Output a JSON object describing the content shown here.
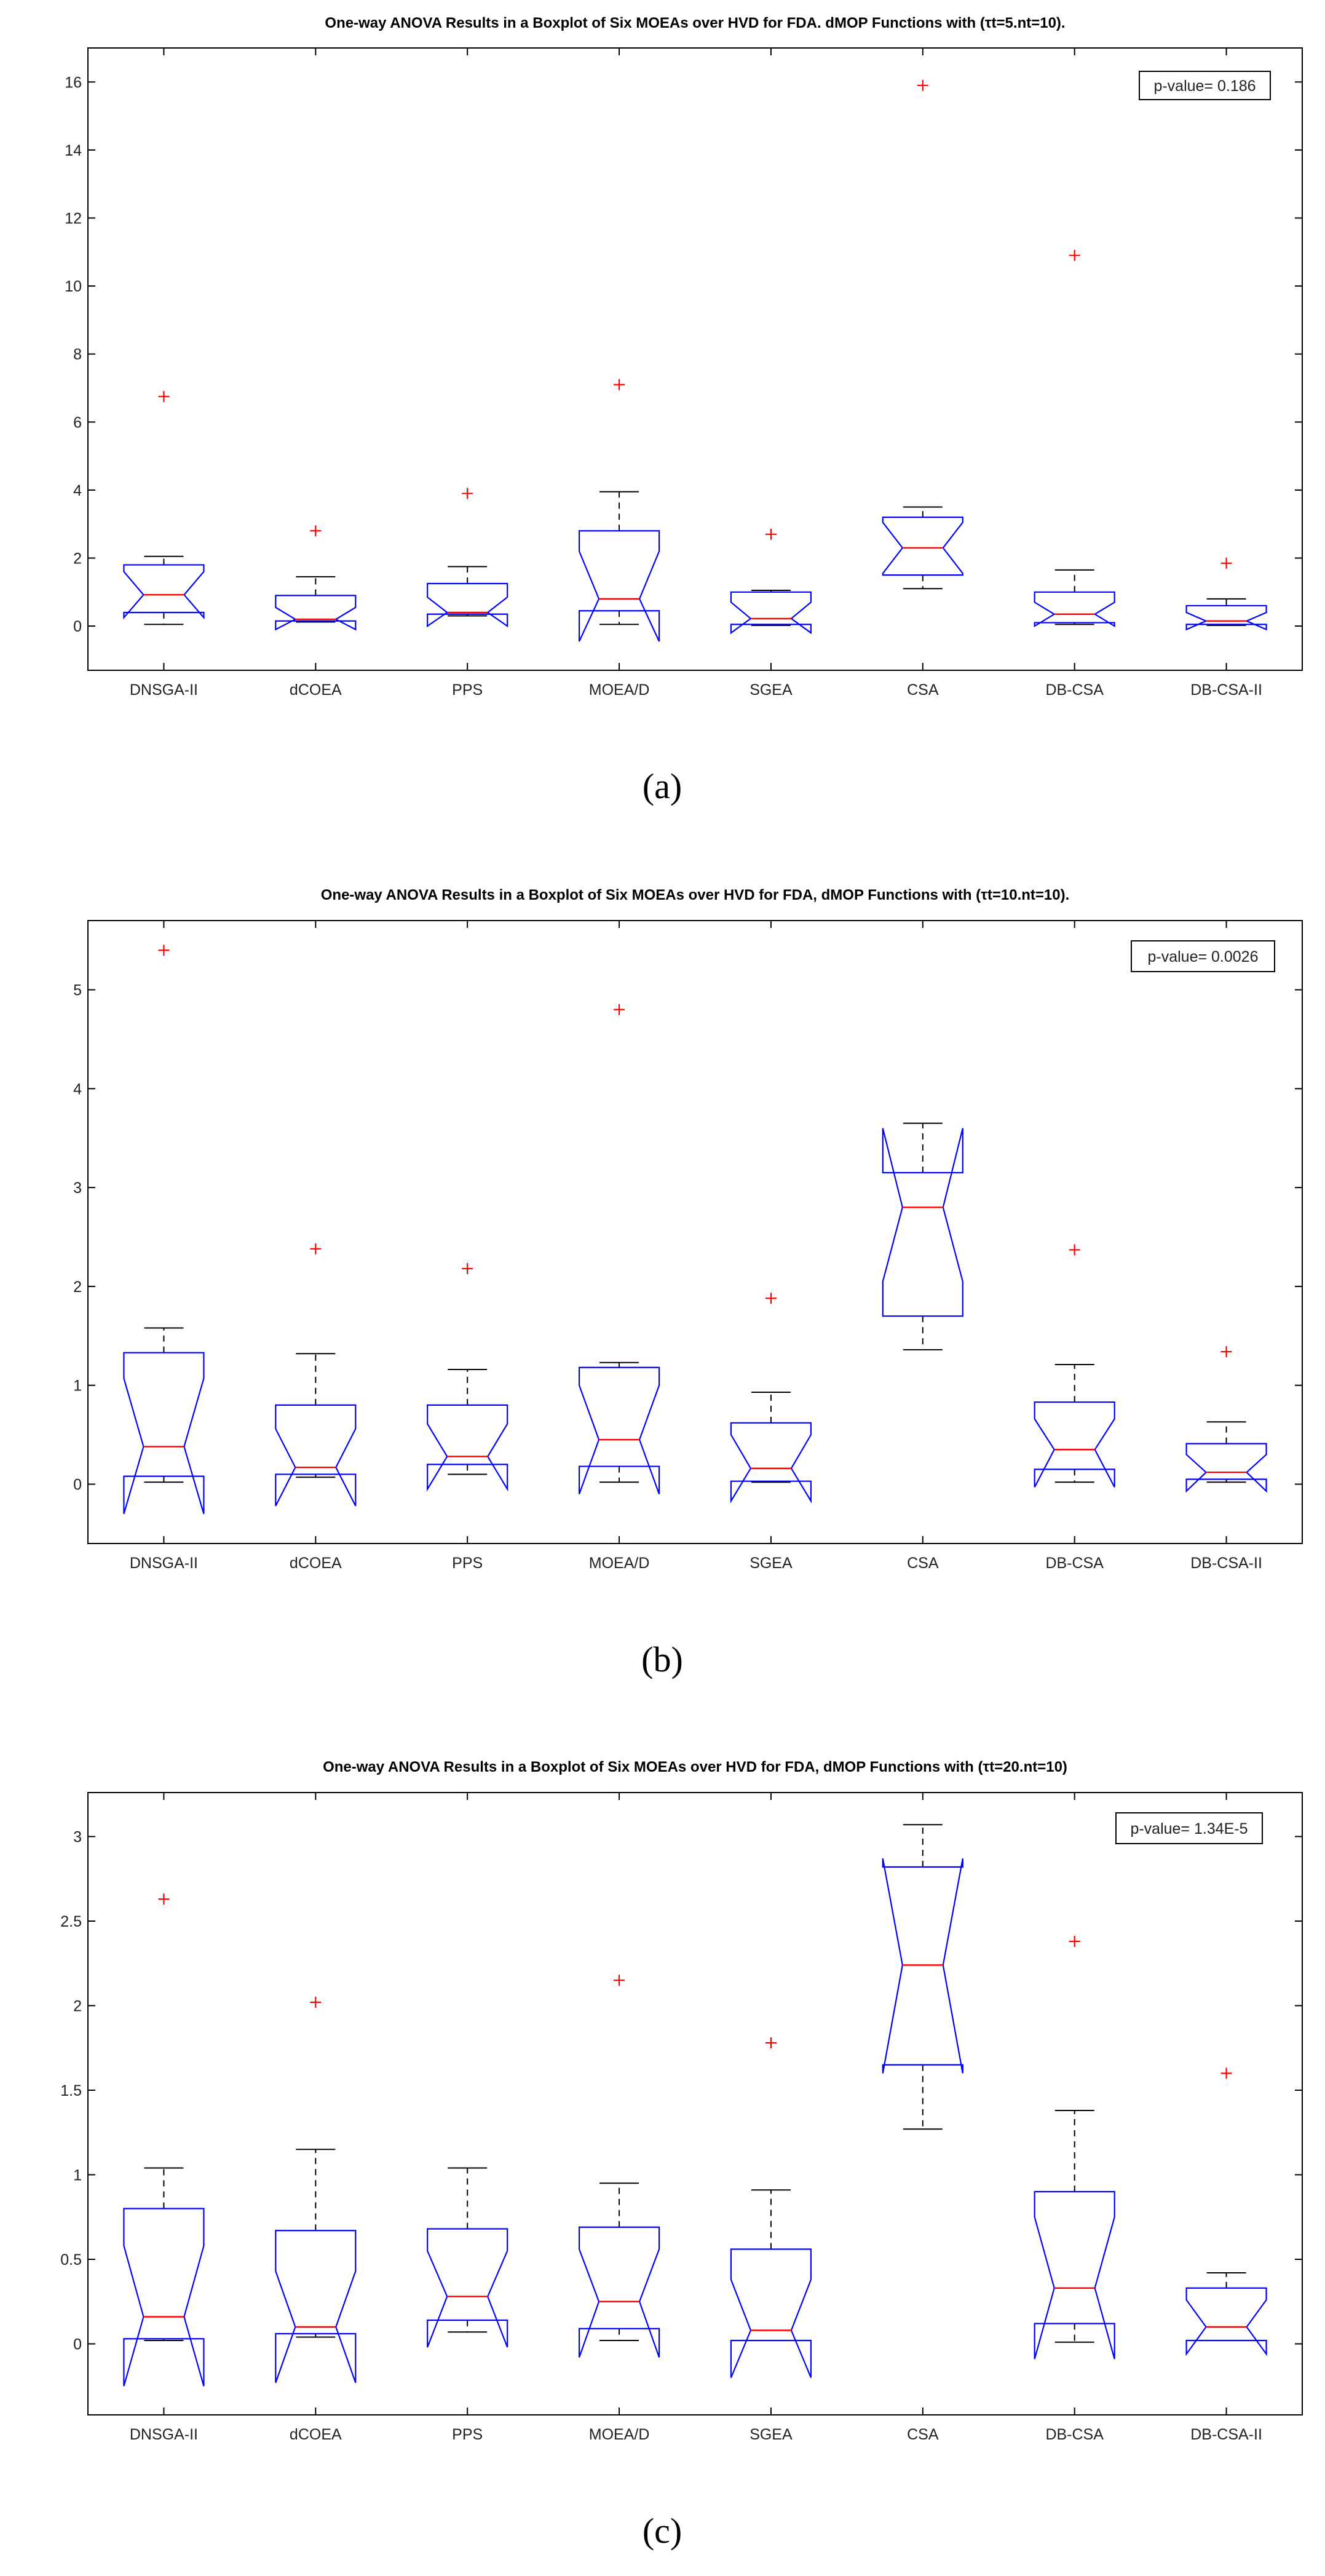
{
  "figure": {
    "colors": {
      "box": "#0000ff",
      "median": "#ff0000",
      "outlier": "#ff0000",
      "whisker": "#000000",
      "axes": "#000000",
      "background": "#ffffff"
    },
    "panels": [
      {
        "caption": "(a)",
        "pvalue_label": "p-value= 0.186"
      },
      {
        "caption": "(b)",
        "pvalue_label": "p-value= 0.0026"
      },
      {
        "caption": "(c)",
        "pvalue_label": "p-value= 1.34E-5"
      }
    ]
  },
  "chart_data": [
    {
      "type": "boxplot",
      "notched": true,
      "title": "One-way ANOVA Results in a Boxplot of Six MOEAs over HVD for FDA. dMOP Functions with (τt=5.nt=10).",
      "annotation": "p-value= 0.186",
      "categories": [
        "DNSGA-II",
        "dCOEA",
        "PPS",
        "MOEA/D",
        "SGEA",
        "CSA",
        "DB-CSA",
        "DB-CSA-II"
      ],
      "ylim": [
        -1.3,
        17
      ],
      "yticks": [
        0,
        2,
        4,
        6,
        8,
        10,
        12,
        14,
        16
      ],
      "grid": false,
      "boxes": [
        {
          "whisker_low": 0.05,
          "q1": 0.4,
          "median": 0.92,
          "q3": 1.8,
          "whisker_high": 2.05,
          "notch_low": 0.25,
          "notch_high": 1.6,
          "outliers": [
            6.75
          ]
        },
        {
          "whisker_low": 0.12,
          "q1": 0.15,
          "median": 0.2,
          "q3": 0.9,
          "whisker_high": 1.45,
          "notch_low": -0.1,
          "notch_high": 0.55,
          "outliers": [
            2.8
          ]
        },
        {
          "whisker_low": 0.3,
          "q1": 0.35,
          "median": 0.4,
          "q3": 1.25,
          "whisker_high": 1.75,
          "notch_low": 0.0,
          "notch_high": 0.85,
          "outliers": [
            3.9
          ]
        },
        {
          "whisker_low": 0.05,
          "q1": 0.45,
          "median": 0.8,
          "q3": 2.8,
          "whisker_high": 3.95,
          "notch_low": -0.45,
          "notch_high": 2.2,
          "outliers": [
            7.1
          ]
        },
        {
          "whisker_low": 0.02,
          "q1": 0.05,
          "median": 0.22,
          "q3": 1.0,
          "whisker_high": 1.05,
          "notch_low": -0.2,
          "notch_high": 0.7,
          "outliers": [
            2.7
          ]
        },
        {
          "whisker_low": 1.1,
          "q1": 1.5,
          "median": 2.3,
          "q3": 3.2,
          "whisker_high": 3.5,
          "notch_low": 1.55,
          "notch_high": 3.05,
          "outliers": [
            15.9
          ]
        },
        {
          "whisker_low": 0.05,
          "q1": 0.1,
          "median": 0.35,
          "q3": 1.0,
          "whisker_high": 1.65,
          "notch_low": 0.0,
          "notch_high": 0.7,
          "outliers": [
            10.9
          ]
        },
        {
          "whisker_low": 0.02,
          "q1": 0.05,
          "median": 0.15,
          "q3": 0.6,
          "whisker_high": 0.8,
          "notch_low": -0.1,
          "notch_high": 0.4,
          "outliers": [
            1.85
          ]
        }
      ]
    },
    {
      "type": "boxplot",
      "notched": true,
      "title": "One-way ANOVA Results in a Boxplot of Six MOEAs over HVD for FDA, dMOP Functions with (τt=10.nt=10).",
      "annotation": "p-value= 0.0026",
      "categories": [
        "DNSGA-II",
        "dCOEA",
        "PPS",
        "MOEA/D",
        "SGEA",
        "CSA",
        "DB-CSA",
        "DB-CSA-II"
      ],
      "ylim": [
        -0.6,
        5.7
      ],
      "yticks": [
        0,
        1,
        2,
        3,
        4,
        5
      ],
      "grid": false,
      "boxes": [
        {
          "whisker_low": 0.02,
          "q1": 0.08,
          "median": 0.38,
          "q3": 1.33,
          "whisker_high": 1.58,
          "notch_low": -0.3,
          "notch_high": 1.07,
          "outliers": [
            5.4
          ]
        },
        {
          "whisker_low": 0.07,
          "q1": 0.1,
          "median": 0.17,
          "q3": 0.8,
          "whisker_high": 1.32,
          "notch_low": -0.22,
          "notch_high": 0.56,
          "outliers": [
            2.38
          ]
        },
        {
          "whisker_low": 0.1,
          "q1": 0.2,
          "median": 0.28,
          "q3": 0.8,
          "whisker_high": 1.16,
          "notch_low": -0.05,
          "notch_high": 0.61,
          "outliers": [
            2.18
          ]
        },
        {
          "whisker_low": 0.02,
          "q1": 0.18,
          "median": 0.45,
          "q3": 1.18,
          "whisker_high": 1.23,
          "notch_low": -0.1,
          "notch_high": 1.0,
          "outliers": [
            4.8
          ]
        },
        {
          "whisker_low": 0.02,
          "q1": 0.03,
          "median": 0.16,
          "q3": 0.62,
          "whisker_high": 0.93,
          "notch_low": -0.17,
          "notch_high": 0.5,
          "outliers": [
            1.88
          ]
        },
        {
          "whisker_low": 1.36,
          "q1": 1.7,
          "median": 2.8,
          "q3": 3.15,
          "whisker_high": 3.65,
          "notch_low": 2.05,
          "notch_high": 3.6,
          "outliers": []
        },
        {
          "whisker_low": 0.02,
          "q1": 0.15,
          "median": 0.35,
          "q3": 0.83,
          "whisker_high": 1.21,
          "notch_low": -0.03,
          "notch_high": 0.66,
          "outliers": [
            2.37
          ]
        },
        {
          "whisker_low": 0.02,
          "q1": 0.05,
          "median": 0.12,
          "q3": 0.41,
          "whisker_high": 0.63,
          "notch_low": -0.07,
          "notch_high": 0.3,
          "outliers": [
            1.34
          ]
        }
      ]
    },
    {
      "type": "boxplot",
      "notched": true,
      "title": "One-way ANOVA Results in a Boxplot of Six MOEAs over HVD for FDA, dMOP Functions with (τt=20.nt=10)",
      "annotation": "p-value= 1.34E-5",
      "categories": [
        "DNSGA-II",
        "dCOEA",
        "PPS",
        "MOEA/D",
        "SGEA",
        "CSA",
        "DB-CSA",
        "DB-CSA-II"
      ],
      "ylim": [
        -0.42,
        3.26
      ],
      "yticks": [
        0,
        0.5,
        1,
        1.5,
        2,
        2.5,
        3
      ],
      "grid": false,
      "boxes": [
        {
          "whisker_low": 0.02,
          "q1": 0.03,
          "median": 0.16,
          "q3": 0.8,
          "whisker_high": 1.04,
          "notch_low": -0.25,
          "notch_high": 0.58,
          "outliers": [
            2.63
          ]
        },
        {
          "whisker_low": 0.04,
          "q1": 0.06,
          "median": 0.1,
          "q3": 0.67,
          "whisker_high": 1.15,
          "notch_low": -0.23,
          "notch_high": 0.43,
          "outliers": [
            2.02
          ]
        },
        {
          "whisker_low": 0.07,
          "q1": 0.14,
          "median": 0.28,
          "q3": 0.68,
          "whisker_high": 1.04,
          "notch_low": -0.02,
          "notch_high": 0.55,
          "outliers": []
        },
        {
          "whisker_low": 0.02,
          "q1": 0.09,
          "median": 0.25,
          "q3": 0.69,
          "whisker_high": 0.95,
          "notch_low": -0.08,
          "notch_high": 0.56,
          "outliers": [
            2.15
          ]
        },
        {
          "whisker_low": 0.02,
          "q1": 0.02,
          "median": 0.08,
          "q3": 0.56,
          "whisker_high": 0.91,
          "notch_low": -0.2,
          "notch_high": 0.38,
          "outliers": [
            1.78
          ]
        },
        {
          "whisker_low": 1.27,
          "q1": 1.65,
          "median": 2.24,
          "q3": 2.82,
          "whisker_high": 3.07,
          "notch_low": 1.6,
          "notch_high": 2.87,
          "outliers": []
        },
        {
          "whisker_low": 0.01,
          "q1": 0.12,
          "median": 0.33,
          "q3": 0.9,
          "whisker_high": 1.38,
          "notch_low": -0.09,
          "notch_high": 0.75,
          "outliers": [
            2.38
          ]
        },
        {
          "whisker_low": 0.02,
          "q1": 0.02,
          "median": 0.1,
          "q3": 0.33,
          "whisker_high": 0.42,
          "notch_low": -0.06,
          "notch_high": 0.26,
          "outliers": [
            1.6
          ]
        }
      ]
    }
  ]
}
